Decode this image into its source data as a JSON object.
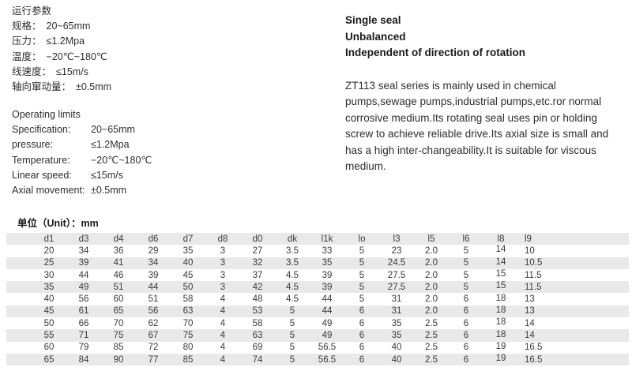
{
  "cn_params": {
    "title": "运行参数",
    "items": [
      {
        "label": "规格：",
        "value": "20~65mm"
      },
      {
        "label": "压力：",
        "value": "≤1.2Mpa"
      },
      {
        "label": "温度：",
        "value": "−20℃~180℃"
      },
      {
        "label": "线速度：",
        "value": "≤15m/s"
      },
      {
        "label": "轴向窜动量：",
        "value": "±0.5mm"
      }
    ]
  },
  "en_params": {
    "title": "Operating limits",
    "items": [
      {
        "label": "Specification:",
        "value": "20~65mm"
      },
      {
        "label": "pressure:",
        "value": "≤1.2Mpa"
      },
      {
        "label": "Temperature:",
        "value": "−20℃~180℃"
      },
      {
        "label": "Linear speed:",
        "value": "≤15m/s"
      },
      {
        "label": "Axial movement:",
        "value": "±0.5mm"
      }
    ]
  },
  "features": {
    "lines": [
      "Single seal",
      "Unbalanced",
      "Independent of direction of rotation"
    ]
  },
  "description": {
    "text": "ZT113 seal series is mainly used in chemical pumps,sewage pumps,industrial pumps,etc.ror normal corrosive medium.Its rotating seal uses pin or holding screw to achieve reliable drive.Its axial size is small and has a high inter-changeability.It is suitable for viscous medium."
  },
  "table": {
    "unit_label": "单位（Unit）：mm",
    "columns": [
      "d1",
      "d3",
      "d4",
      "d6",
      "d7",
      "d8",
      "d0",
      "dk",
      "l1k",
      "lo",
      "l3",
      "l5",
      "l6",
      "l8",
      "l9"
    ],
    "rows": [
      [
        "20",
        "34",
        "36",
        "29",
        "35",
        "3",
        "27",
        "3.5",
        "33",
        "5",
        "23",
        "2.0",
        "5",
        "14",
        "10"
      ],
      [
        "25",
        "39",
        "41",
        "34",
        "40",
        "3",
        "32",
        "3.5",
        "35",
        "5",
        "24.5",
        "2.0",
        "5",
        "14",
        "10.5"
      ],
      [
        "30",
        "44",
        "46",
        "39",
        "45",
        "3",
        "37",
        "4.5",
        "39",
        "5",
        "27.5",
        "2.0",
        "5",
        "15",
        "11.5"
      ],
      [
        "35",
        "49",
        "51",
        "44",
        "50",
        "3",
        "42",
        "4.5",
        "39",
        "5",
        "27.5",
        "2.0",
        "5",
        "15",
        "11.5"
      ],
      [
        "40",
        "56",
        "60",
        "51",
        "58",
        "4",
        "48",
        "4.5",
        "44",
        "5",
        "31",
        "2.0",
        "6",
        "18",
        "13"
      ],
      [
        "45",
        "61",
        "65",
        "56",
        "63",
        "4",
        "53",
        "5",
        "44",
        "6",
        "31",
        "2.0",
        "6",
        "18",
        "13"
      ],
      [
        "50",
        "66",
        "70",
        "62",
        "70",
        "4",
        "58",
        "5",
        "49",
        "6",
        "35",
        "2.5",
        "6",
        "18",
        "14"
      ],
      [
        "55",
        "71",
        "75",
        "67",
        "75",
        "4",
        "63",
        "5",
        "49",
        "6",
        "35",
        "2.5",
        "6",
        "18",
        "14"
      ],
      [
        "60",
        "79",
        "85",
        "72",
        "80",
        "4",
        "69",
        "5",
        "56.5",
        "6",
        "40",
        "2.5",
        "6",
        "19",
        "16.5"
      ],
      [
        "65",
        "84",
        "90",
        "77",
        "85",
        "4",
        "74",
        "5",
        "56.5",
        "6",
        "40",
        "2.5",
        "6",
        "19",
        "16.5"
      ]
    ],
    "colors": {
      "row_shade": "#e9e9e9",
      "text": "#3a3a3a"
    }
  }
}
